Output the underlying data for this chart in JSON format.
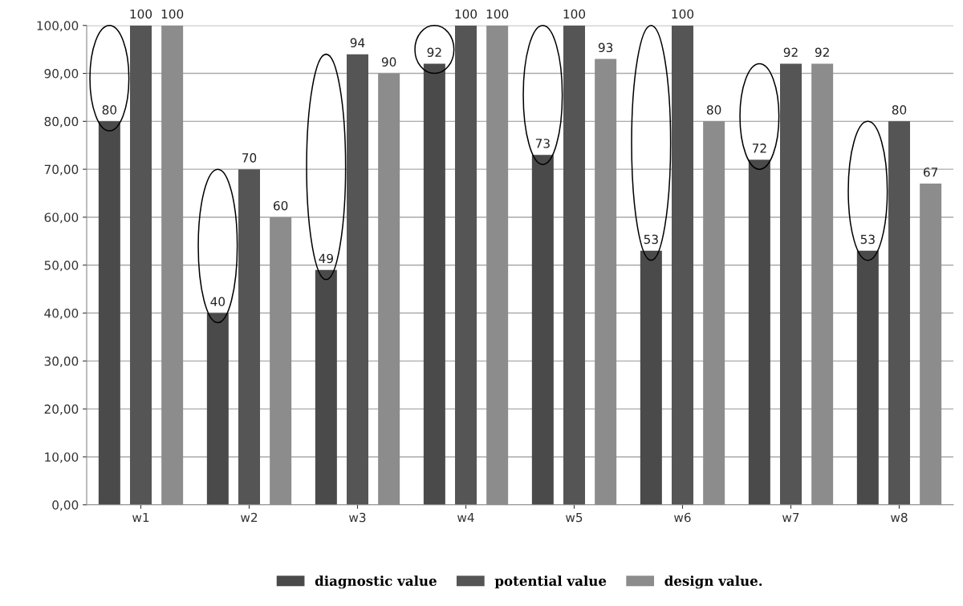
{
  "chart_data": {
    "type": "bar",
    "categories": [
      "w1",
      "w2",
      "w3",
      "w4",
      "w5",
      "w6",
      "w7",
      "w8"
    ],
    "series": [
      {
        "name": "diagnostic value",
        "color": "#4a4a4a",
        "values": [
          80,
          40,
          49,
          92,
          73,
          53,
          72,
          53
        ]
      },
      {
        "name": "potential value",
        "color": "#555555",
        "values": [
          100,
          70,
          94,
          100,
          100,
          100,
          92,
          80
        ]
      },
      {
        "name": "design value.",
        "color": "#8c8c8c",
        "values": [
          100,
          60,
          90,
          100,
          93,
          80,
          92,
          67
        ]
      }
    ],
    "ylim": [
      0,
      100
    ],
    "yticks": [
      {
        "value": 0,
        "label": "0,00"
      },
      {
        "value": 10,
        "label": "10,00"
      },
      {
        "value": 20,
        "label": "20,00"
      },
      {
        "value": 30,
        "label": "30,00"
      },
      {
        "value": 40,
        "label": "40,00"
      },
      {
        "value": 50,
        "label": "50,00"
      },
      {
        "value": 60,
        "label": "60,00"
      },
      {
        "value": 70,
        "label": "70,00"
      },
      {
        "value": 80,
        "label": "80,00"
      },
      {
        "value": 90,
        "label": "90,00"
      },
      {
        "value": 100,
        "label": "100,00"
      }
    ],
    "grid": "y",
    "legend": "bottom",
    "data_labels": true
  }
}
